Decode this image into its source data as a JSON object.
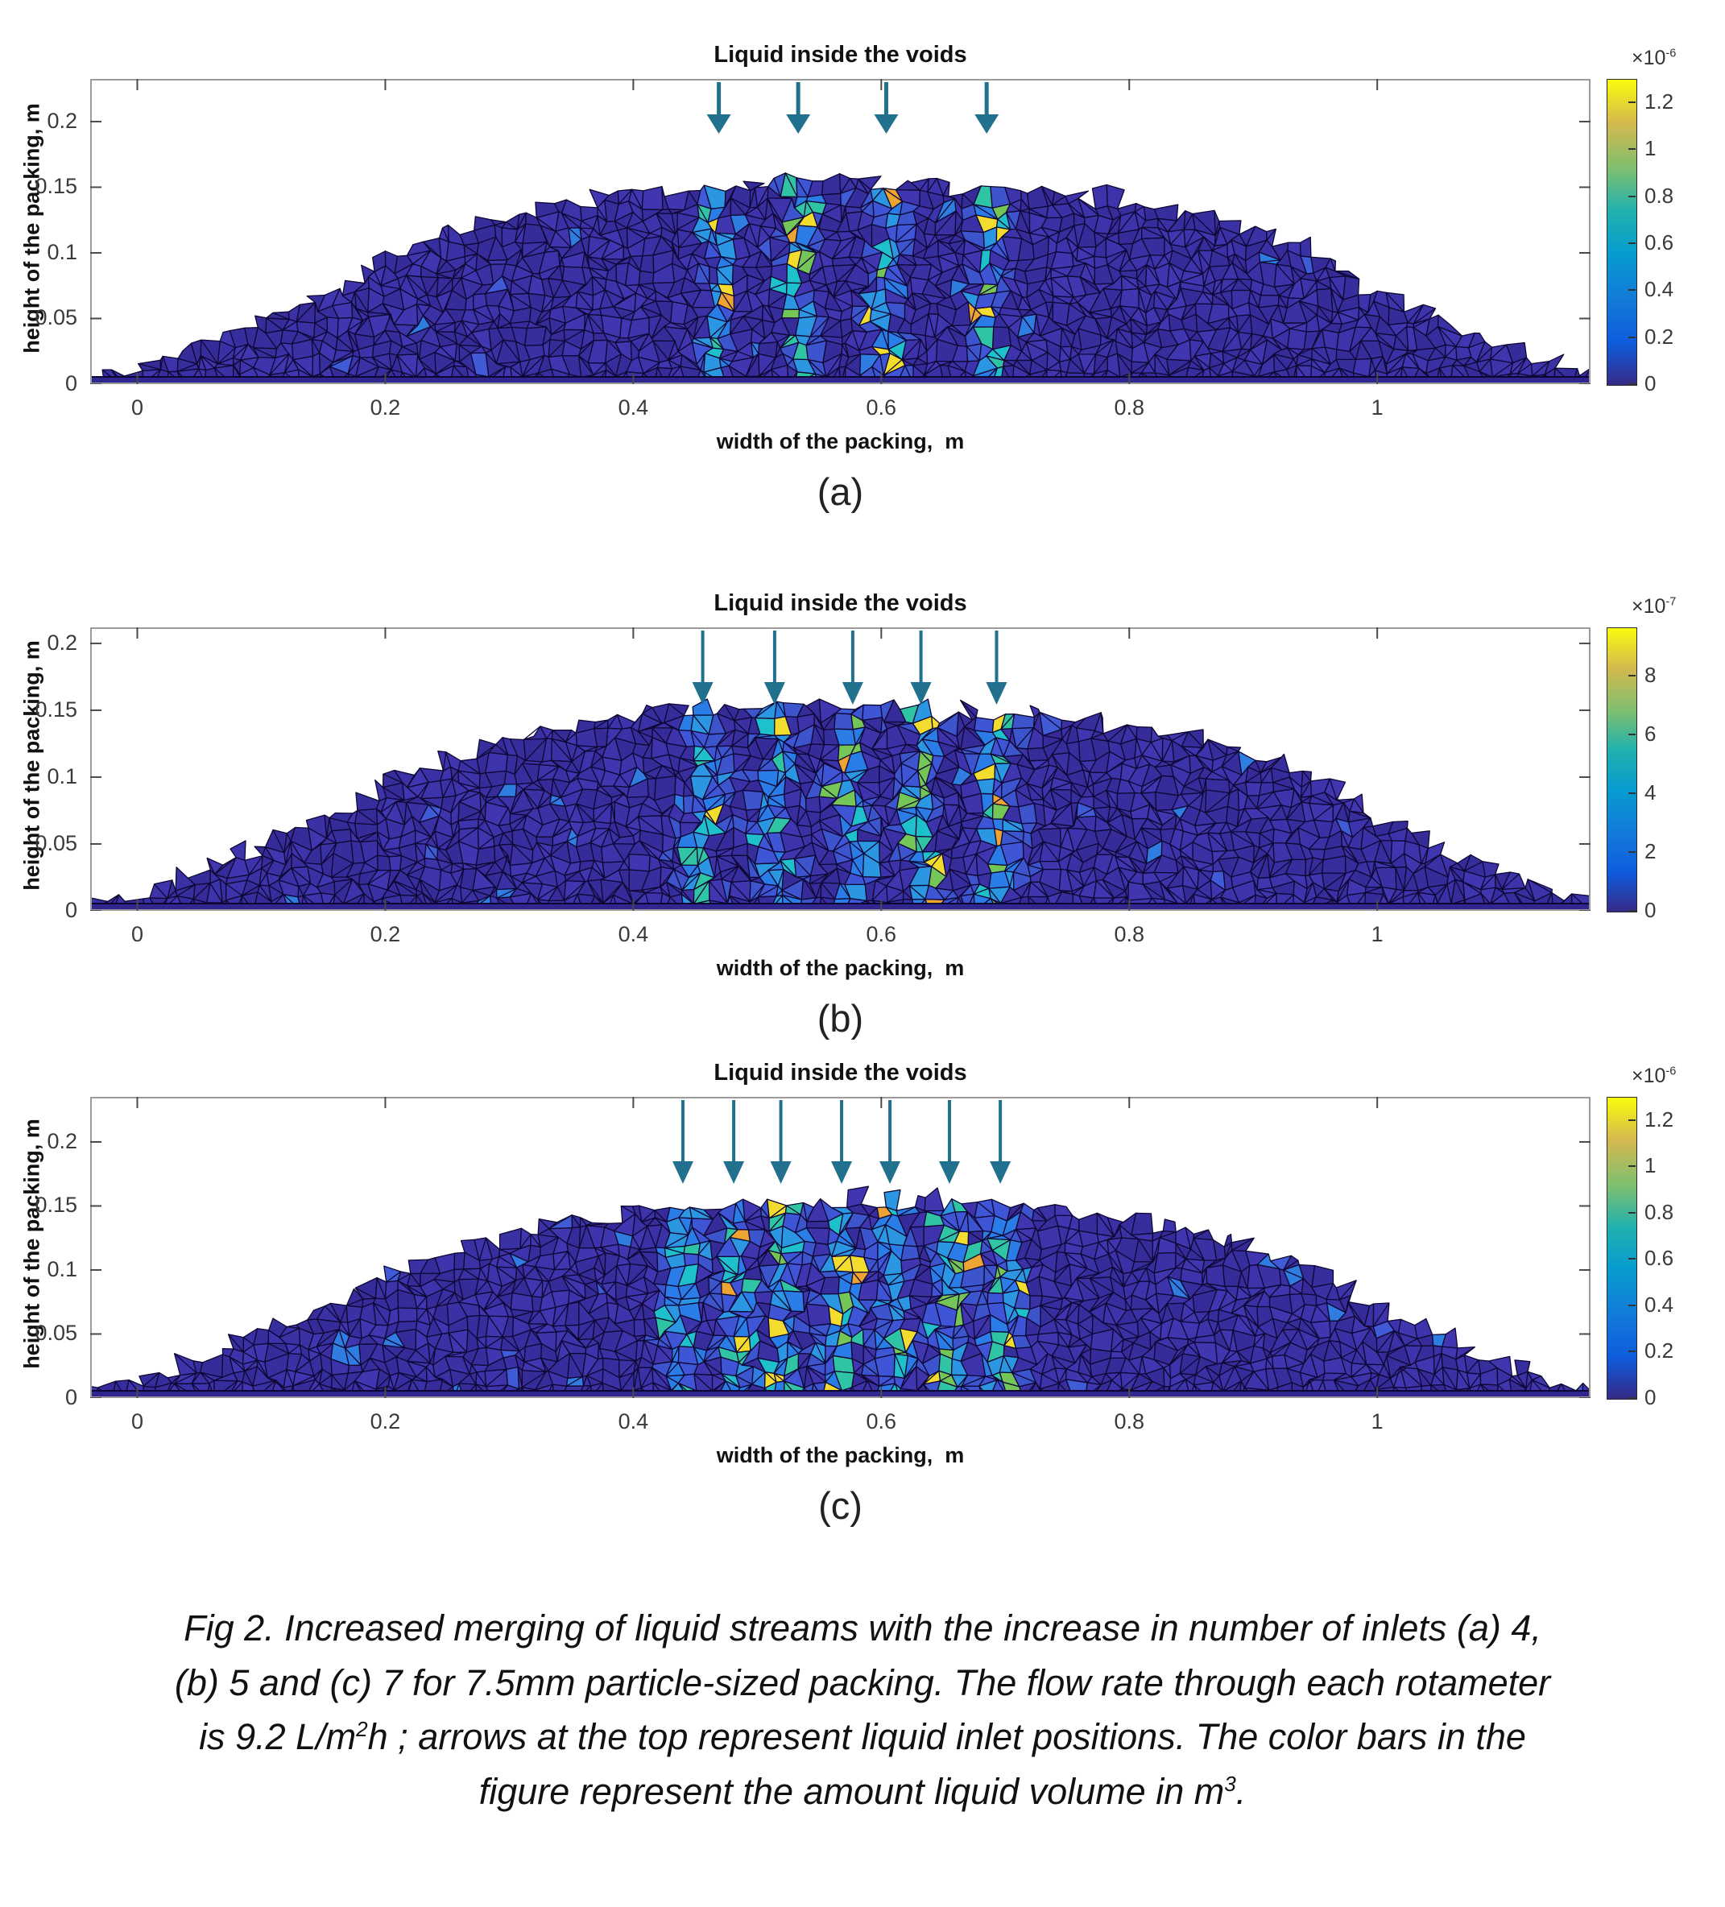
{
  "figure": {
    "caption_lines": [
      "Fig 2. Increased merging of liquid streams with the increase in number of inlets (a) 4,",
      "(b) 5 and (c) 7 for 7.5mm particle-sized packing. The flow rate through each rotameter",
      "is 9.2 L/m^2^h ; arrows at the top represent liquid inlet positions. The color bars in the",
      "figure represent the amount liquid volume in m^3^."
    ]
  },
  "mound_profile_m": [
    [
      -0.04,
      0.004
    ],
    [
      0,
      0.012
    ],
    [
      0.05,
      0.03
    ],
    [
      0.1,
      0.05
    ],
    [
      0.15,
      0.068
    ],
    [
      0.2,
      0.095
    ],
    [
      0.25,
      0.115
    ],
    [
      0.3,
      0.128
    ],
    [
      0.35,
      0.138
    ],
    [
      0.4,
      0.147
    ],
    [
      0.45,
      0.15
    ],
    [
      0.5,
      0.153
    ],
    [
      0.55,
      0.155
    ],
    [
      0.6,
      0.155
    ],
    [
      0.65,
      0.152
    ],
    [
      0.7,
      0.15
    ],
    [
      0.75,
      0.146
    ],
    [
      0.8,
      0.14
    ],
    [
      0.85,
      0.131
    ],
    [
      0.9,
      0.118
    ],
    [
      0.95,
      0.1
    ],
    [
      1,
      0.07
    ],
    [
      1.05,
      0.048
    ],
    [
      1.1,
      0.028
    ],
    [
      1.15,
      0.012
    ],
    [
      1.172,
      0.008
    ]
  ],
  "chart_data": [
    {
      "type": "heatmap",
      "panel_label": "(a)",
      "title": "Liquid inside the voids",
      "xlabel": "width of the packing,  m",
      "ylabel": "height of the packing, m",
      "x_ticks": [
        0,
        0.2,
        0.4,
        0.6,
        0.8,
        1
      ],
      "y_ticks": [
        0,
        0.05,
        0.1,
        0.15,
        0.2
      ],
      "x_range": [
        -0.038,
        1.172
      ],
      "y_range": [
        0,
        0.2325
      ],
      "n_inlets": 4,
      "inlet_positions_m": [
        0.469,
        0.533,
        0.604,
        0.685
      ],
      "stream_intensity": [
        0.55,
        0.65,
        1,
        0.85
      ],
      "colorbar": {
        "exponent_label": "×10^-6^",
        "tick_values": [
          0,
          0.2,
          0.4,
          0.6,
          0.8,
          1,
          1.2
        ],
        "vmax_rel": 1.3,
        "units": "m^3^"
      }
    },
    {
      "type": "heatmap",
      "panel_label": "(b)",
      "title": "Liquid inside the voids",
      "xlabel": "width of the packing,  m",
      "ylabel": "height of the packing, m",
      "x_ticks": [
        0,
        0.2,
        0.4,
        0.6,
        0.8,
        1
      ],
      "y_ticks": [
        0,
        0.05,
        0.1,
        0.15,
        0.2
      ],
      "x_range": [
        -0.038,
        1.172
      ],
      "y_range": [
        0,
        0.212
      ],
      "n_inlets": 5,
      "inlet_positions_m": [
        0.456,
        0.514,
        0.577,
        0.632,
        0.693
      ],
      "stream_intensity": [
        0.55,
        0.5,
        1,
        0.65,
        0.9
      ],
      "colorbar": {
        "exponent_label": "×10^-7^",
        "tick_values": [
          0,
          2,
          4,
          6,
          8
        ],
        "vmax_rel": 9.66,
        "units": "m^3^"
      }
    },
    {
      "type": "heatmap",
      "panel_label": "(c)",
      "title": "Liquid inside the voids",
      "xlabel": "width of the packing,  m",
      "ylabel": "height of the packing, m",
      "x_ticks": [
        0,
        0.2,
        0.4,
        0.6,
        0.8,
        1
      ],
      "y_ticks": [
        0,
        0.05,
        0.1,
        0.15,
        0.2
      ],
      "x_range": [
        -0.038,
        1.172
      ],
      "y_range": [
        0,
        0.2352
      ],
      "n_inlets": 7,
      "inlet_positions_m": [
        0.44,
        0.481,
        0.519,
        0.568,
        0.607,
        0.655,
        0.696
      ],
      "stream_intensity": [
        0.55,
        0.6,
        0.65,
        0.9,
        1,
        0.75,
        0.9
      ],
      "colorbar": {
        "exponent_label": "×10^-6^",
        "tick_values": [
          0,
          0.2,
          0.4,
          0.6,
          0.8,
          1,
          1.2
        ],
        "vmax_rel": 1.3,
        "units": "m^3^"
      }
    }
  ],
  "style": {
    "arrow_color": "#20708e",
    "mesh_base_color": "#3a31a5",
    "mesh_edge_color": "#0f0733",
    "bottom_strip_color": "#30268f",
    "axis_box_color": "#9b9b9b",
    "tick_color": "#4a4a4a",
    "colormap": "parula",
    "colormap_stops": [
      "#352a87",
      "#0f5cdd",
      "#127dd8",
      "#079ccf",
      "#21b1ae",
      "#7fbf6f",
      "#d5b94e",
      "#f9fb0e"
    ]
  }
}
